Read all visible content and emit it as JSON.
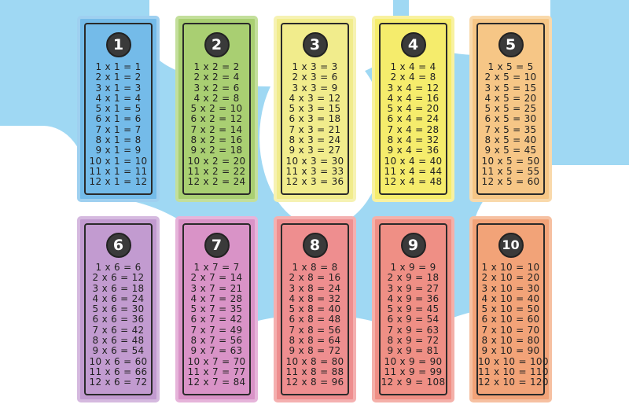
{
  "colors": {
    "sky": "#9fd8f3",
    "cloud": "#ffffff"
  },
  "cards": [
    {
      "number": "1",
      "color": "#74bbe9",
      "border": "#9fd0f0",
      "lines": [
        "1 x 1 = 1",
        "2 x 1 = 2",
        "3 x 1 = 3",
        "4 x 1 = 4",
        "5 x 1 = 5",
        "6 x 1 = 6",
        "7 x 1 = 7",
        "8 x 1 = 8",
        "9 x 1 = 9",
        "10 x 1 = 10",
        "11 x 1 = 11",
        "12 x 1 = 12"
      ]
    },
    {
      "number": "2",
      "color": "#a9cf72",
      "border": "#c3df9b",
      "lines": [
        "1 x 2 = 2",
        "2 x 2 = 4",
        "3 x 2 = 6",
        "4 x 2 = 8",
        "5 x 2 = 10",
        "6 x 2 = 12",
        "7 x 2 = 14",
        "8 x 2 = 16",
        "9 x 2 = 18",
        "10 x 2 = 20",
        "11 x 2 = 22",
        "12 x 2 = 24"
      ]
    },
    {
      "number": "3",
      "color": "#f1ec8c",
      "border": "#f6f2b3",
      "lines": [
        "1 x 3 = 3",
        "2 x 3 = 6",
        "3 x 3 = 9",
        "4 x 3 = 12",
        "5 x 3 = 15",
        "6 x 3 = 18",
        "7 x 3 = 21",
        "8 x 3 = 24",
        "9 x 3 = 27",
        "10 x 3 = 30",
        "11 x 3 = 33",
        "12 x 3 = 36"
      ]
    },
    {
      "number": "4",
      "color": "#f5ec6c",
      "border": "#f8f1a0",
      "lines": [
        "1 x 4 = 4",
        "2 x 4 = 8",
        "3 x 4 = 12",
        "4 x 4 = 16",
        "5 x 4 = 20",
        "6 x 4 = 24",
        "7 x 4 = 28",
        "8 x 4 = 32",
        "9 x 4 = 36",
        "10 x 4 = 40",
        "11 x 4 = 44",
        "12 x 4 = 48"
      ]
    },
    {
      "number": "5",
      "color": "#f6c686",
      "border": "#f9d9ab",
      "lines": [
        "1 x 5 = 5",
        "2 x 5 = 10",
        "3 x 5 = 15",
        "4 x 5 = 20",
        "5 x 5 = 25",
        "6 x 5 = 30",
        "7 x 5 = 35",
        "8 x 5 = 40",
        "9 x 5 = 45",
        "10 x 5 = 50",
        "11 x 5 = 55",
        "12 x 5 = 60"
      ]
    },
    {
      "number": "6",
      "color": "#c29bd0",
      "border": "#d5b9df",
      "lines": [
        "1 x 6 = 6",
        "2 x 6 = 12",
        "3 x 6 = 18",
        "4 x 6 = 24",
        "5 x 6 = 30",
        "6 x 6 = 36",
        "7 x 6 = 42",
        "8 x 6 = 48",
        "9 x 6 = 54",
        "10 x 6 = 60",
        "11 x 6 = 66",
        "12 x 6 = 72"
      ]
    },
    {
      "number": "7",
      "color": "#d993c7",
      "border": "#e6b4da",
      "lines": [
        "1 x 7 = 7",
        "2 x 7 = 14",
        "3 x 7 = 21",
        "4 x 7 = 28",
        "5 x 7 = 35",
        "6 x 7 = 42",
        "7 x 7 = 49",
        "8 x 7 = 56",
        "9 x 7 = 63",
        "10 x 7 = 70",
        "11 x 7 = 77",
        "12 x 7 = 84"
      ]
    },
    {
      "number": "8",
      "color": "#ee8e8f",
      "border": "#f4b0b0",
      "lines": [
        "1 x 8 = 8",
        "2 x 8 = 16",
        "3 x 8 = 24",
        "4 x 8 = 32",
        "5 x 8 = 40",
        "6 x 8 = 48",
        "7 x 8 = 56",
        "8 x 8 = 64",
        "9 x 8 = 72",
        "10 x 8 = 80",
        "11 x 8 = 88",
        "12 x 8 = 96"
      ]
    },
    {
      "number": "9",
      "color": "#ef8f85",
      "border": "#f4b0a9",
      "lines": [
        "1 x 9 = 9",
        "2 x 9 = 18",
        "3 x 9 = 27",
        "4 x 9 = 36",
        "5 x 9 = 45",
        "6 x 9 = 54",
        "7 x 9 = 63",
        "8 x 9 = 72",
        "9 x 9 = 81",
        "10 x 9 = 90",
        "11 x 9 = 99",
        "12 x 9 = 108"
      ]
    },
    {
      "number": "10",
      "color": "#f2a378",
      "border": "#f6c0a1",
      "lines": [
        "1 x 10 = 10",
        "2 x 10 = 20",
        "3 x 10 = 30",
        "4 x 10 = 40",
        "5 x 10 = 50",
        "6 x 10 = 60",
        "7 x 10 = 70",
        "8 x 10 = 80",
        "9 x 10 = 90",
        "10 x 10 = 100",
        "11 x 10 = 110",
        "12 x 10 = 120"
      ]
    }
  ]
}
